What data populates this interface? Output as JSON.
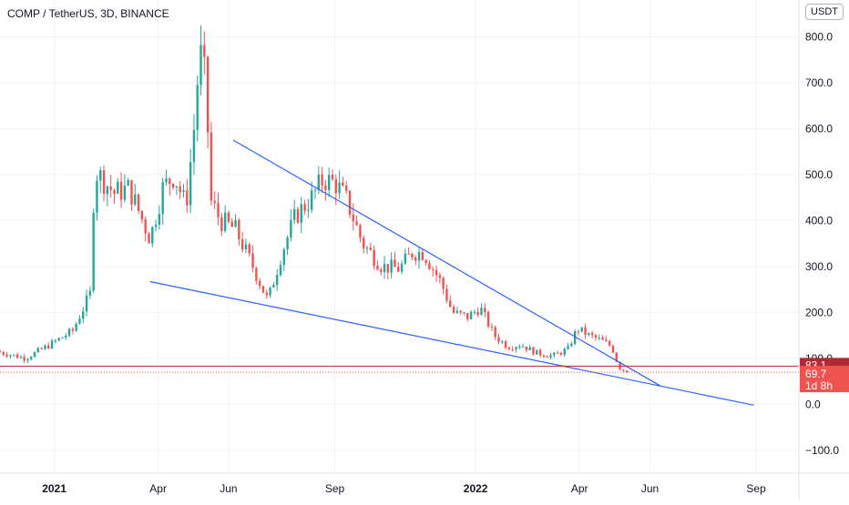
{
  "header": {
    "title": "COMP / TetherUS, 3D, BINANCE",
    "unit": "USDT"
  },
  "chart_data": {
    "type": "candlestick",
    "title": "COMP / TetherUS, 3D, BINANCE",
    "ylim": [
      -150,
      880
    ],
    "y_ticks": [
      800,
      700,
      600,
      500,
      400,
      300,
      200,
      100,
      0,
      -100
    ],
    "y_tick_labels": [
      "800.0",
      "700.0",
      "600.0",
      "500.0",
      "400.0",
      "300.0",
      "200.0",
      "100.0",
      "0.0",
      "−100.0"
    ],
    "x_range": [
      "2020-11-15",
      "2022-10-08"
    ],
    "x_ticks": [
      {
        "date": "2021-01-01",
        "label": "2021",
        "bold": true
      },
      {
        "date": "2021-04-01",
        "label": "Apr",
        "bold": false
      },
      {
        "date": "2021-06-01",
        "label": "Jun",
        "bold": false
      },
      {
        "date": "2021-09-01",
        "label": "Sep",
        "bold": false
      },
      {
        "date": "2022-01-01",
        "label": "2022",
        "bold": true
      },
      {
        "date": "2022-04-01",
        "label": "Apr",
        "bold": false
      },
      {
        "date": "2022-06-01",
        "label": "Jun",
        "bold": false
      },
      {
        "date": "2022-09-01",
        "label": "Sep",
        "bold": false
      }
    ],
    "grid": true,
    "colors": {
      "up": "#26a69a",
      "down": "#ef5350",
      "trendline": "#2962ff",
      "level": "#b22833",
      "current": "#ef5350"
    },
    "anchors": [
      [
        "2020-11-15",
        115
      ],
      [
        "2020-12-10",
        100
      ],
      [
        "2020-12-28",
        125
      ],
      [
        "2021-01-20",
        160
      ],
      [
        "2021-02-04",
        240
      ],
      [
        "2021-02-08",
        510
      ],
      [
        "2021-02-25",
        460
      ],
      [
        "2021-03-10",
        470
      ],
      [
        "2021-03-28",
        360
      ],
      [
        "2021-04-08",
        470
      ],
      [
        "2021-04-18",
        500
      ],
      [
        "2021-04-28",
        430
      ],
      [
        "2021-05-05",
        600
      ],
      [
        "2021-05-10",
        770
      ],
      [
        "2021-05-15",
        700
      ],
      [
        "2021-05-20",
        440
      ],
      [
        "2021-05-28",
        400
      ],
      [
        "2021-06-10",
        380
      ],
      [
        "2021-06-25",
        300
      ],
      [
        "2021-07-08",
        225
      ],
      [
        "2021-07-20",
        330
      ],
      [
        "2021-08-01",
        410
      ],
      [
        "2021-08-15",
        450
      ],
      [
        "2021-08-25",
        490
      ],
      [
        "2021-09-05",
        480
      ],
      [
        "2021-09-15",
        440
      ],
      [
        "2021-09-28",
        350
      ],
      [
        "2021-10-15",
        300
      ],
      [
        "2021-10-30",
        295
      ],
      [
        "2021-11-10",
        330
      ],
      [
        "2021-11-20",
        330
      ],
      [
        "2021-12-05",
        265
      ],
      [
        "2021-12-15",
        200
      ],
      [
        "2021-12-28",
        190
      ],
      [
        "2022-01-08",
        210
      ],
      [
        "2022-01-20",
        150
      ],
      [
        "2022-02-01",
        125
      ],
      [
        "2022-02-12",
        130
      ],
      [
        "2022-02-25",
        112
      ],
      [
        "2022-03-12",
        105
      ],
      [
        "2022-03-25",
        120
      ],
      [
        "2022-04-02",
        165
      ],
      [
        "2022-04-12",
        150
      ],
      [
        "2022-04-22",
        140
      ],
      [
        "2022-05-02",
        125
      ],
      [
        "2022-05-08",
        80
      ],
      [
        "2022-05-14",
        72
      ]
    ],
    "trendlines": [
      {
        "name": "upper",
        "start": [
          "2021-06-05",
          575
        ],
        "end": [
          "2022-06-10",
          40
        ]
      },
      {
        "name": "lower",
        "start": [
          "2021-03-25",
          267
        ],
        "end": [
          "2022-08-30",
          -2
        ]
      }
    ],
    "levels": [
      {
        "name": "level-line",
        "value": 83.1,
        "label": "83.1"
      }
    ],
    "current_price": {
      "value": 69.7,
      "label": "69.7",
      "countdown": "1d 8h"
    }
  }
}
